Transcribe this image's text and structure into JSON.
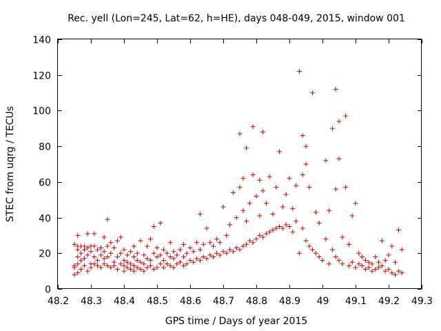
{
  "chart_data": {
    "type": "scatter",
    "title": "Rec. yell (Lon=245, Lat=62, h=HE), days 048-049, 2015, window 001",
    "xlabel": "GPS time / Days of year 2015",
    "ylabel": "STEC from uqrg / TECUs",
    "xlim": [
      48.2,
      49.3
    ],
    "ylim": [
      0,
      140
    ],
    "xticks": [
      "48.2",
      "48.3",
      "48.4",
      "48.5",
      "48.6",
      "48.7",
      "48.8",
      "48.9",
      "49",
      "49.1",
      "49.2",
      "49.3"
    ],
    "yticks": [
      "0",
      "20",
      "40",
      "60",
      "80",
      "100",
      "120",
      "140"
    ],
    "marker": "+",
    "color": "#cc0000",
    "grid": false,
    "series": [
      {
        "name": "STEC",
        "points": [
          [
            48.25,
            8
          ],
          [
            48.25,
            12
          ],
          [
            48.25,
            13
          ],
          [
            48.25,
            25
          ],
          [
            48.26,
            9
          ],
          [
            48.26,
            14
          ],
          [
            48.26,
            18
          ],
          [
            48.26,
            22
          ],
          [
            48.26,
            24
          ],
          [
            48.26,
            30
          ],
          [
            48.27,
            11
          ],
          [
            48.27,
            16
          ],
          [
            48.27,
            20
          ],
          [
            48.27,
            24
          ],
          [
            48.28,
            13
          ],
          [
            48.28,
            17
          ],
          [
            48.28,
            22
          ],
          [
            48.28,
            24
          ],
          [
            48.29,
            10
          ],
          [
            48.29,
            19
          ],
          [
            48.29,
            23
          ],
          [
            48.29,
            31
          ],
          [
            48.3,
            12
          ],
          [
            48.3,
            14
          ],
          [
            48.3,
            21
          ],
          [
            48.3,
            24
          ],
          [
            48.31,
            14
          ],
          [
            48.31,
            18
          ],
          [
            48.31,
            24
          ],
          [
            48.31,
            31
          ],
          [
            48.32,
            13
          ],
          [
            48.32,
            16
          ],
          [
            48.32,
            22
          ],
          [
            48.33,
            12
          ],
          [
            48.33,
            19
          ],
          [
            48.33,
            23
          ],
          [
            48.34,
            14
          ],
          [
            48.34,
            17
          ],
          [
            48.34,
            21
          ],
          [
            48.34,
            29
          ],
          [
            48.35,
            13
          ],
          [
            48.35,
            18
          ],
          [
            48.35,
            24
          ],
          [
            48.35,
            39
          ],
          [
            48.36,
            12
          ],
          [
            48.36,
            20
          ],
          [
            48.36,
            26
          ],
          [
            48.37,
            13
          ],
          [
            48.37,
            15
          ],
          [
            48.37,
            23
          ],
          [
            48.38,
            11
          ],
          [
            48.38,
            18
          ],
          [
            48.38,
            27
          ],
          [
            48.39,
            14
          ],
          [
            48.39,
            20
          ],
          [
            48.39,
            29
          ],
          [
            48.4,
            10
          ],
          [
            48.4,
            13
          ],
          [
            48.4,
            16
          ],
          [
            48.4,
            22
          ],
          [
            48.41,
            12
          ],
          [
            48.41,
            15
          ],
          [
            48.41,
            19
          ],
          [
            48.42,
            11
          ],
          [
            48.42,
            14
          ],
          [
            48.42,
            21
          ],
          [
            48.43,
            10
          ],
          [
            48.43,
            13
          ],
          [
            48.43,
            18
          ],
          [
            48.43,
            24
          ],
          [
            48.44,
            12
          ],
          [
            48.44,
            16
          ],
          [
            48.44,
            20
          ],
          [
            48.45,
            11
          ],
          [
            48.45,
            15
          ],
          [
            48.45,
            27
          ],
          [
            48.46,
            10
          ],
          [
            48.46,
            14
          ],
          [
            48.46,
            19
          ],
          [
            48.47,
            12
          ],
          [
            48.47,
            17
          ],
          [
            48.47,
            24
          ],
          [
            48.48,
            13
          ],
          [
            48.48,
            16
          ],
          [
            48.48,
            28
          ],
          [
            48.49,
            11
          ],
          [
            48.49,
            20
          ],
          [
            48.49,
            35
          ],
          [
            48.5,
            12
          ],
          [
            48.5,
            18
          ],
          [
            48.5,
            23
          ],
          [
            48.51,
            14
          ],
          [
            48.51,
            19
          ],
          [
            48.51,
            37
          ],
          [
            48.52,
            12
          ],
          [
            48.52,
            16
          ],
          [
            48.52,
            22
          ],
          [
            48.53,
            14
          ],
          [
            48.53,
            20
          ],
          [
            48.54,
            13
          ],
          [
            48.54,
            18
          ],
          [
            48.54,
            26
          ],
          [
            48.55,
            12
          ],
          [
            48.55,
            17
          ],
          [
            48.55,
            21
          ],
          [
            48.56,
            14
          ],
          [
            48.56,
            19
          ],
          [
            48.57,
            15
          ],
          [
            48.57,
            22
          ],
          [
            48.58,
            13
          ],
          [
            48.58,
            18
          ],
          [
            48.58,
            25
          ],
          [
            48.59,
            14
          ],
          [
            48.59,
            20
          ],
          [
            48.6,
            16
          ],
          [
            48.6,
            23
          ],
          [
            48.61,
            15
          ],
          [
            48.61,
            21
          ],
          [
            48.62,
            17
          ],
          [
            48.62,
            26
          ],
          [
            48.63,
            16
          ],
          [
            48.63,
            22
          ],
          [
            48.63,
            42
          ],
          [
            48.64,
            18
          ],
          [
            48.64,
            25
          ],
          [
            48.65,
            17
          ],
          [
            48.65,
            34
          ],
          [
            48.66,
            19
          ],
          [
            48.66,
            26
          ],
          [
            48.67,
            18
          ],
          [
            48.67,
            24
          ],
          [
            48.68,
            20
          ],
          [
            48.68,
            28
          ],
          [
            48.69,
            19
          ],
          [
            48.69,
            26
          ],
          [
            48.7,
            21
          ],
          [
            48.7,
            46
          ],
          [
            48.71,
            20
          ],
          [
            48.71,
            30
          ],
          [
            48.72,
            22
          ],
          [
            48.72,
            36
          ],
          [
            48.73,
            21
          ],
          [
            48.73,
            54
          ],
          [
            48.74,
            23
          ],
          [
            48.74,
            40
          ],
          [
            48.75,
            22
          ],
          [
            48.75,
            57
          ],
          [
            48.75,
            87
          ],
          [
            48.76,
            24
          ],
          [
            48.76,
            44
          ],
          [
            48.76,
            62
          ],
          [
            48.77,
            25
          ],
          [
            48.77,
            79
          ],
          [
            48.77,
            38
          ],
          [
            48.78,
            27
          ],
          [
            48.78,
            48
          ],
          [
            48.79,
            26
          ],
          [
            48.79,
            64
          ],
          [
            48.79,
            91
          ],
          [
            48.8,
            28
          ],
          [
            48.8,
            52
          ],
          [
            48.81,
            30
          ],
          [
            48.81,
            61
          ],
          [
            48.81,
            41
          ],
          [
            48.82,
            29
          ],
          [
            48.82,
            88
          ],
          [
            48.82,
            55
          ],
          [
            48.83,
            31
          ],
          [
            48.83,
            48
          ],
          [
            48.84,
            32
          ],
          [
            48.84,
            63
          ],
          [
            48.85,
            33
          ],
          [
            48.85,
            42
          ],
          [
            48.86,
            34
          ],
          [
            48.86,
            57
          ],
          [
            48.87,
            35
          ],
          [
            48.87,
            77
          ],
          [
            48.88,
            34
          ],
          [
            48.88,
            46
          ],
          [
            48.89,
            36
          ],
          [
            48.89,
            53
          ],
          [
            48.9,
            35
          ],
          [
            48.9,
            62
          ],
          [
            48.91,
            32
          ],
          [
            48.91,
            45
          ],
          [
            48.92,
            38
          ],
          [
            48.92,
            58
          ],
          [
            48.93,
            20
          ],
          [
            48.93,
            122
          ],
          [
            48.94,
            34
          ],
          [
            48.94,
            86
          ],
          [
            48.94,
            64
          ],
          [
            48.95,
            27
          ],
          [
            48.95,
            80
          ],
          [
            48.95,
            70
          ],
          [
            48.96,
            24
          ],
          [
            48.96,
            57
          ],
          [
            48.97,
            22
          ],
          [
            48.97,
            110
          ],
          [
            48.98,
            20
          ],
          [
            48.98,
            43
          ],
          [
            48.99,
            18
          ],
          [
            48.99,
            37
          ],
          [
            49.0,
            16
          ],
          [
            49.01,
            72
          ],
          [
            49.01,
            28
          ],
          [
            49.02,
            14
          ],
          [
            49.02,
            44
          ],
          [
            49.03,
            90
          ],
          [
            49.03,
            22
          ],
          [
            49.04,
            18
          ],
          [
            49.04,
            112
          ],
          [
            49.04,
            56
          ],
          [
            49.05,
            16
          ],
          [
            49.05,
            94
          ],
          [
            49.05,
            73
          ],
          [
            49.06,
            14
          ],
          [
            49.06,
            29
          ],
          [
            49.07,
            97
          ],
          [
            49.07,
            57
          ],
          [
            49.08,
            13
          ],
          [
            49.08,
            25
          ],
          [
            49.09,
            15
          ],
          [
            49.09,
            41
          ],
          [
            49.1,
            12
          ],
          [
            49.1,
            48
          ],
          [
            49.11,
            14
          ],
          [
            49.11,
            20
          ],
          [
            49.12,
            13
          ],
          [
            49.12,
            18
          ],
          [
            49.13,
            11
          ],
          [
            49.13,
            16
          ],
          [
            49.14,
            12
          ],
          [
            49.14,
            15
          ],
          [
            49.15,
            10
          ],
          [
            49.15,
            14
          ],
          [
            49.16,
            11
          ],
          [
            49.16,
            18
          ],
          [
            49.17,
            12
          ],
          [
            49.17,
            15
          ],
          [
            49.18,
            13
          ],
          [
            49.18,
            27
          ],
          [
            49.19,
            10
          ],
          [
            49.19,
            16
          ],
          [
            49.2,
            11
          ],
          [
            49.2,
            19
          ],
          [
            49.21,
            9
          ],
          [
            49.21,
            24
          ],
          [
            49.22,
            8
          ],
          [
            49.22,
            15
          ],
          [
            49.23,
            10
          ],
          [
            49.23,
            33
          ],
          [
            49.24,
            9
          ],
          [
            49.24,
            22
          ]
        ]
      }
    ]
  }
}
